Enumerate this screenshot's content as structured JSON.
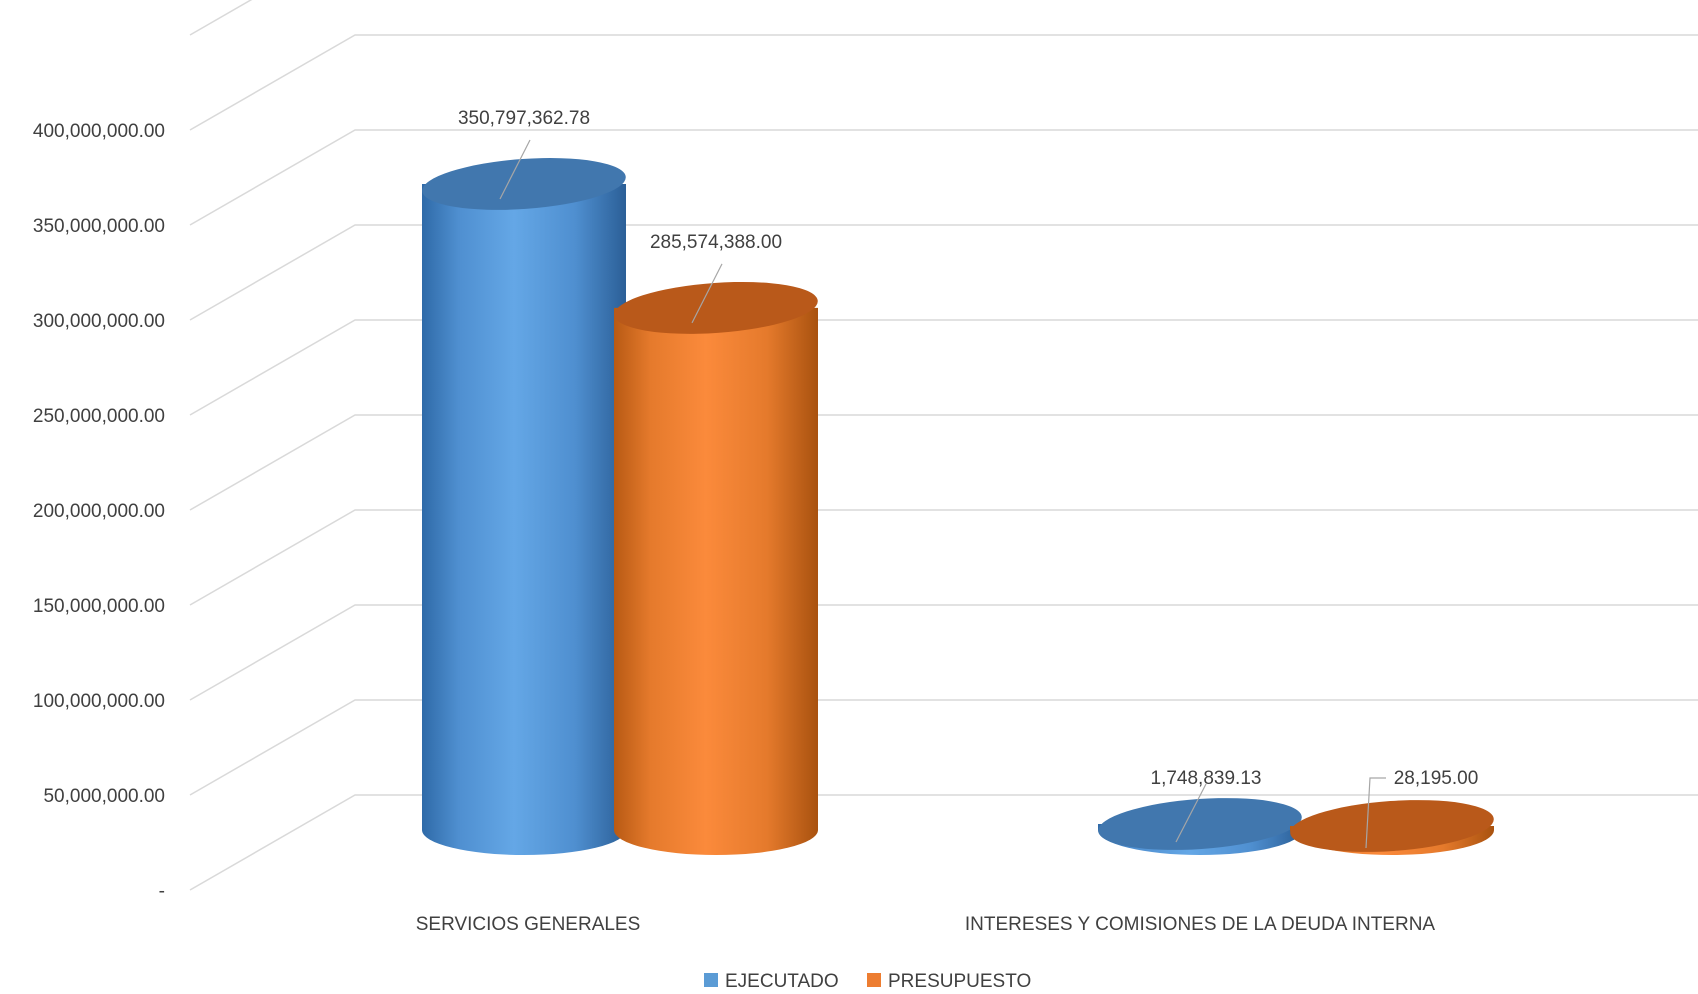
{
  "chart_data": {
    "type": "bar",
    "style": "3d-cylinder",
    "title": "",
    "xlabel": "",
    "ylabel": "",
    "categories": [
      "SERVICIOS GENERALES",
      "INTERESES Y COMISIONES DE LA DEUDA INTERNA"
    ],
    "series": [
      {
        "name": "EJECUTADO",
        "color": "#5B9BD5",
        "values": [
          350797362.78,
          1748839.13
        ],
        "labels": [
          "350,797,362.78",
          "1,748,839.13"
        ]
      },
      {
        "name": "PRESUPUESTO",
        "color": "#ED7D31",
        "values": [
          285574388.0,
          28195.0
        ],
        "labels": [
          "285,574,388.00",
          "28,195.00"
        ]
      }
    ],
    "ylim": [
      0,
      450000000
    ],
    "yticks": [
      0,
      50000000,
      100000000,
      150000000,
      200000000,
      250000000,
      300000000,
      350000000,
      400000000
    ],
    "ytick_labels": [
      "-",
      "50,000,000.00",
      "100,000,000.00",
      "150,000,000.00",
      "200,000,000.00",
      "250,000,000.00",
      "300,000,000.00",
      "350,000,000.00",
      "400,000,000.00"
    ],
    "grid": true,
    "legend": {
      "position": "bottom",
      "entries": [
        "EJECUTADO",
        "PRESUPUESTO"
      ]
    }
  }
}
